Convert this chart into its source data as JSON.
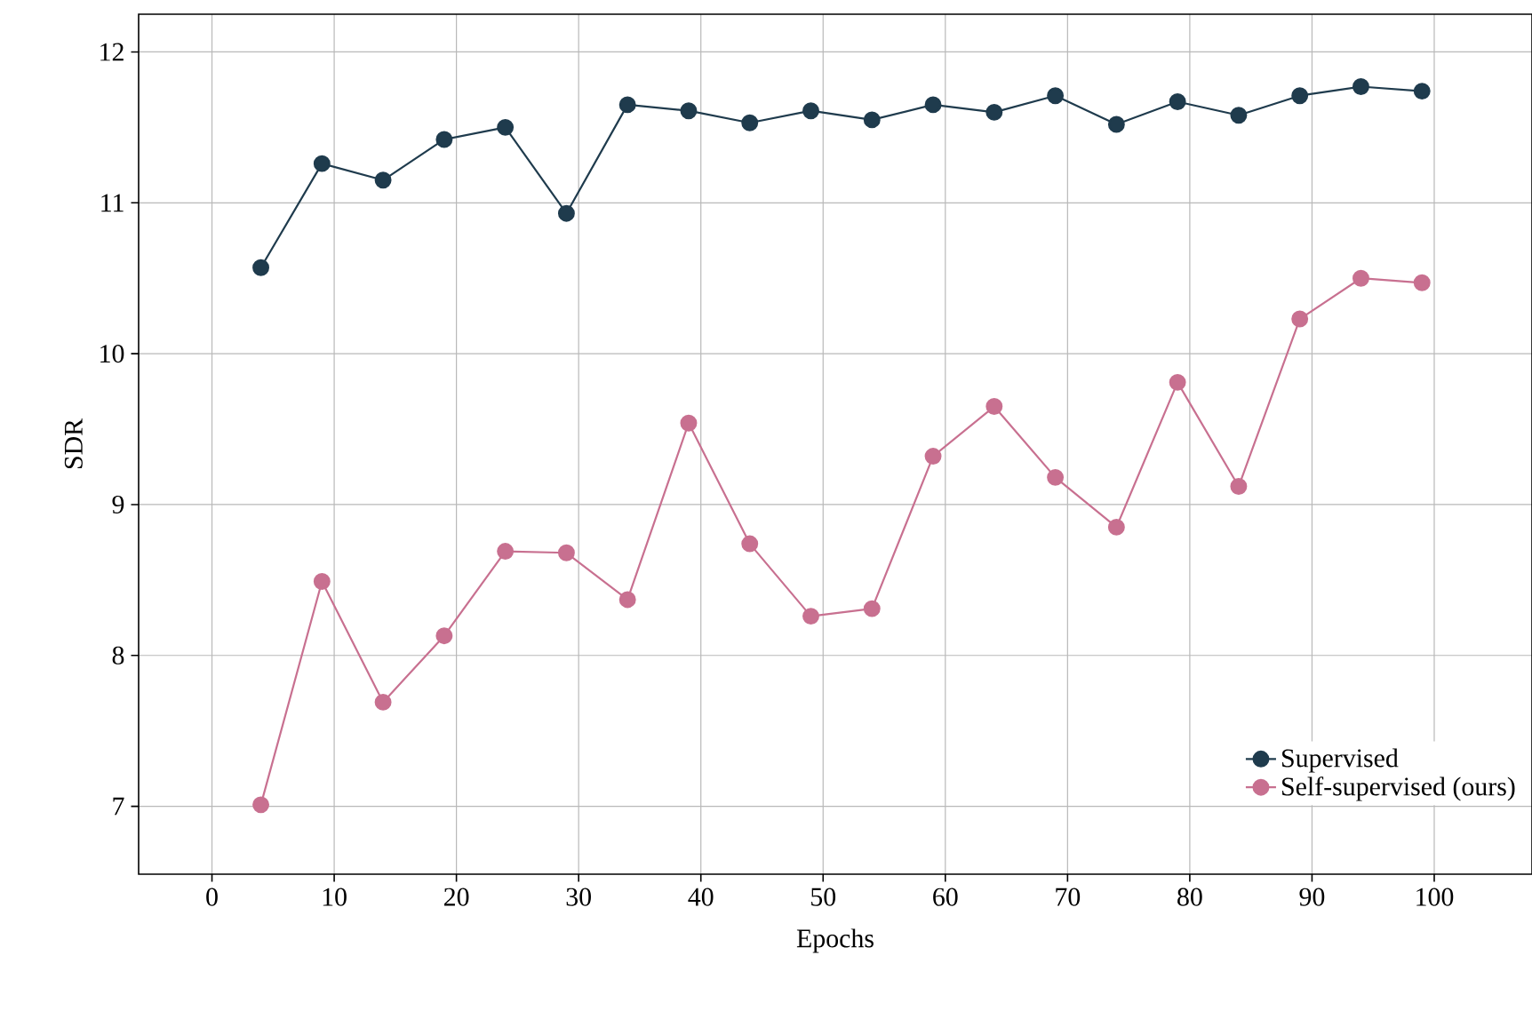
{
  "chart_data": {
    "type": "line",
    "xlabel": "Epochs",
    "ylabel": "SDR",
    "xlim": [
      -6,
      108
    ],
    "ylim": [
      6.55,
      12.25
    ],
    "xticks": [
      0,
      10,
      20,
      30,
      40,
      50,
      60,
      70,
      80,
      90,
      100
    ],
    "yticks": [
      7,
      8,
      9,
      10,
      11,
      12
    ],
    "grid": true,
    "legend": "bottom right",
    "marker": "circle",
    "line_style": "solid",
    "x": [
      4,
      9,
      14,
      19,
      24,
      29,
      34,
      39,
      44,
      49,
      54,
      59,
      64,
      69,
      74,
      79,
      84,
      89,
      94,
      99
    ],
    "series": [
      {
        "name": "Supervised",
        "color": "#1f3b4d",
        "values": [
          10.57,
          11.26,
          11.15,
          11.42,
          11.5,
          10.93,
          11.65,
          11.61,
          11.53,
          11.61,
          11.55,
          11.65,
          11.6,
          11.71,
          11.52,
          11.67,
          11.58,
          11.71,
          11.77,
          11.74
        ]
      },
      {
        "name": "Self-supervised (ours)",
        "color": "#c87090",
        "values": [
          7.01,
          8.49,
          7.69,
          8.13,
          8.69,
          8.68,
          8.37,
          9.54,
          8.74,
          8.26,
          8.31,
          9.32,
          9.65,
          9.18,
          8.85,
          9.81,
          9.12,
          10.23,
          10.5,
          10.47
        ]
      }
    ]
  }
}
